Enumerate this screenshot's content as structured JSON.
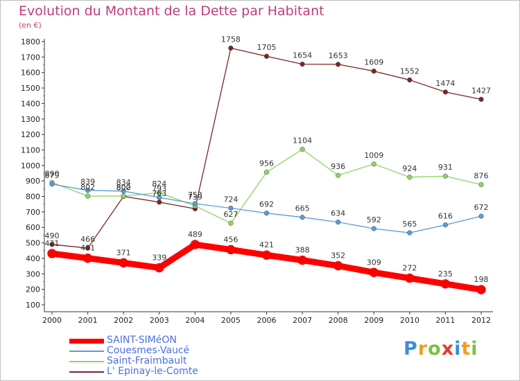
{
  "title": "Evolution du Montant de la Dette par Habitant",
  "unit_label": "(en €)",
  "logo": {
    "letters": [
      "P",
      "r",
      "o",
      "x",
      "i",
      "t",
      "i"
    ],
    "colors": [
      "#3a8fd8",
      "#f29c1f",
      "#7cc043",
      "#e8392e",
      "#3a8fd8",
      "#f29c1f",
      "#7cc043"
    ]
  },
  "chart_data": {
    "type": "line",
    "title": "Evolution du Montant de la Dette par Habitant",
    "ylabel": "(en €)",
    "xlabel": "",
    "x": [
      "2000",
      "2001",
      "2002",
      "2003",
      "2004",
      "2005",
      "2006",
      "2007",
      "2008",
      "2009",
      "2010",
      "2011",
      "2012"
    ],
    "ylim": [
      100,
      1800
    ],
    "yticks": [
      "100",
      "200",
      "300",
      "400",
      "500",
      "600",
      "700",
      "800",
      "900",
      "1000",
      "1100",
      "1200",
      "1300",
      "1400",
      "1500",
      "1600",
      "1700",
      "1800"
    ],
    "grid": false,
    "legend_position": "bottom-left",
    "series": [
      {
        "name": "L' Epinay-le-Comte",
        "color": "#7a2525",
        "values": [
          490,
          466,
          800,
          763,
          720,
          1758,
          1705,
          1654,
          1653,
          1609,
          1552,
          1474,
          1427
        ],
        "labels": [
          "490",
          "466",
          "800",
          "763",
          "",
          "1758",
          "1705",
          "1654",
          "1653",
          "1609",
          "1552",
          "1474",
          "1427"
        ]
      },
      {
        "name": "Saint-Fraimbault",
        "color": "#8ed362",
        "values": [
          890,
          802,
          802,
          824,
          739,
          627,
          956,
          1104,
          936,
          1009,
          924,
          931,
          876
        ],
        "labels": [
          "890",
          "802",
          "802",
          "824",
          "739",
          "627",
          "956",
          "1104",
          "936",
          "1009",
          "924",
          "931",
          "876"
        ]
      },
      {
        "name": "Couesmes-Vaucé",
        "color": "#5b9bd5",
        "values": [
          879,
          839,
          834,
          793,
          753,
          724,
          692,
          665,
          634,
          592,
          565,
          616,
          672
        ],
        "labels": [
          "879",
          "839",
          "834",
          "793",
          "753",
          "724",
          "692",
          "665",
          "634",
          "592",
          "565",
          "616",
          "672"
        ]
      },
      {
        "name": "SAINT-SIMéON",
        "color": "#ff0000",
        "values": [
          431,
          401,
          371,
          339,
          489,
          456,
          421,
          388,
          352,
          309,
          272,
          235,
          198
        ],
        "labels": [
          "431",
          "401",
          "371",
          "339",
          "489",
          "456",
          "421",
          "388",
          "352",
          "309",
          "272",
          "235",
          "198"
        ]
      }
    ],
    "legend": [
      {
        "name": "SAINT-SIMéON",
        "color": "#ff0000",
        "thick": true
      },
      {
        "name": "Couesmes-Vaucé",
        "color": "#5b9bd5",
        "thick": false
      },
      {
        "name": "Saint-Fraimbault",
        "color": "#8ed362",
        "thick": false
      },
      {
        "name": "L' Epinay-le-Comte",
        "color": "#7a2525",
        "thick": false
      }
    ]
  }
}
